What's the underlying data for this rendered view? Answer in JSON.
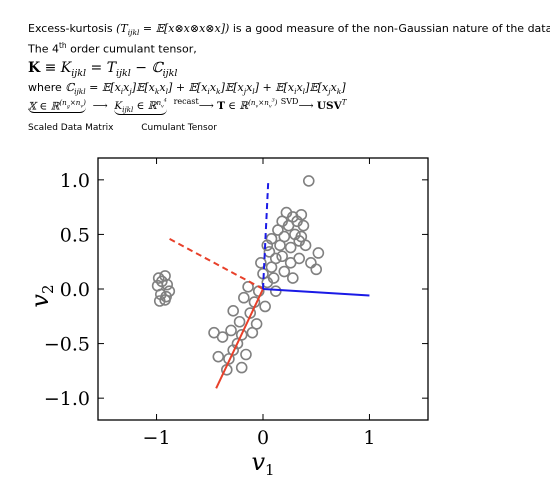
{
  "text": {
    "line1_prefix": "Excess-kurtosis",
    "line1_formula": "(T_ijkl = E[x ⊗ x ⊗ x ⊗ x])",
    "line1_suffix": "is a good measure of the non-Gaussian nature of the data",
    "line2_prefix": "The 4",
    "line2_sup": "th",
    "line2_suffix": "order cumulant tensor,",
    "line3": "K ≡ K_ijkl = T_ijkl − C_ijkl",
    "line4_prefix": "where",
    "line4_formula": "C_ijkl = E[x_i x_j] E[x_k x_l] + E[x_i x_k] E[x_j x_l] + E[x_i x_l] E[x_j x_k]",
    "line5_formula": "X ∈ R^(n_g × n_v) ⟶ K_ijkl ∈ R^(n_v^4) —recast→ T ∈ R^(n_v × n_v^3) —SVD→ USV^T",
    "recast_label": "recast",
    "svd_label": "SVD",
    "scaled_label": "Scaled Data Matrix",
    "cumulant_label": "Cumulant Tensor"
  },
  "chart_data": {
    "type": "scatter",
    "xlabel": "v1",
    "ylabel": "v2",
    "xlim": [
      -1.55,
      1.55
    ],
    "ylim": [
      -1.2,
      1.2
    ],
    "xticks": [
      "−1",
      "0",
      "1"
    ],
    "yticks": [
      "1.0",
      "0.5",
      "0.0",
      "−0.5",
      "−1.0"
    ],
    "marker_color": "#808080",
    "points": [
      [
        -0.98,
        0.1
      ],
      [
        -0.92,
        0.12
      ],
      [
        -0.99,
        0.03
      ],
      [
        -0.9,
        0.04
      ],
      [
        -0.96,
        -0.05
      ],
      [
        -0.91,
        -0.07
      ],
      [
        -0.97,
        -0.11
      ],
      [
        -0.92,
        -0.1
      ],
      [
        -0.88,
        -0.02
      ],
      [
        -0.95,
        0.07
      ],
      [
        0.43,
        0.99
      ],
      [
        0.45,
        0.24
      ],
      [
        0.5,
        0.18
      ],
      [
        0.52,
        0.33
      ],
      [
        0.36,
        0.48
      ],
      [
        -0.42,
        -0.62
      ],
      [
        -0.32,
        -0.64
      ],
      [
        -0.2,
        -0.72
      ],
      [
        -0.28,
        -0.56
      ],
      [
        -0.38,
        -0.44
      ],
      [
        -0.34,
        -0.74
      ],
      [
        -0.46,
        -0.4
      ],
      [
        -0.24,
        -0.5
      ],
      [
        -0.3,
        -0.38
      ],
      [
        -0.16,
        -0.6
      ],
      [
        -0.22,
        -0.3
      ],
      [
        -0.12,
        -0.22
      ],
      [
        -0.28,
        -0.2
      ],
      [
        -0.08,
        -0.12
      ],
      [
        -0.18,
        -0.08
      ],
      [
        -0.04,
        -0.02
      ],
      [
        -0.14,
        0.02
      ],
      [
        0.04,
        0.06
      ],
      [
        0.0,
        0.14
      ],
      [
        0.08,
        0.2
      ],
      [
        0.12,
        0.28
      ],
      [
        0.06,
        0.34
      ],
      [
        0.16,
        0.4
      ],
      [
        0.2,
        0.48
      ],
      [
        0.14,
        0.54
      ],
      [
        0.24,
        0.58
      ],
      [
        0.28,
        0.66
      ],
      [
        0.22,
        0.7
      ],
      [
        0.32,
        0.62
      ],
      [
        0.3,
        0.5
      ],
      [
        0.18,
        0.3
      ],
      [
        0.26,
        0.38
      ],
      [
        0.1,
        0.1
      ],
      [
        0.2,
        0.16
      ],
      [
        -0.06,
        -0.32
      ],
      [
        0.02,
        -0.16
      ],
      [
        -0.2,
        -0.42
      ],
      [
        -0.1,
        -0.4
      ],
      [
        0.34,
        0.44
      ],
      [
        0.38,
        0.58
      ],
      [
        0.26,
        0.24
      ],
      [
        0.12,
        -0.02
      ],
      [
        -0.02,
        0.24
      ],
      [
        0.04,
        0.4
      ],
      [
        0.28,
        0.1
      ],
      [
        0.34,
        0.28
      ],
      [
        0.4,
        0.4
      ],
      [
        0.36,
        0.68
      ],
      [
        0.18,
        0.62
      ],
      [
        0.08,
        0.46
      ]
    ],
    "vectors": [
      {
        "name": "",
        "color": "#e8402a",
        "dash": false,
        "end": [
          -0.44,
          -0.91
        ]
      },
      {
        "name": "",
        "color": "#e8402a",
        "dash": true,
        "end": [
          -0.88,
          0.46
        ]
      },
      {
        "name": "",
        "color": "#1a1ae6",
        "dash": false,
        "end": [
          1.0,
          -0.06
        ]
      },
      {
        "name": "",
        "color": "#1a1ae6",
        "dash": true,
        "end": [
          0.05,
          1.0
        ]
      }
    ]
  }
}
